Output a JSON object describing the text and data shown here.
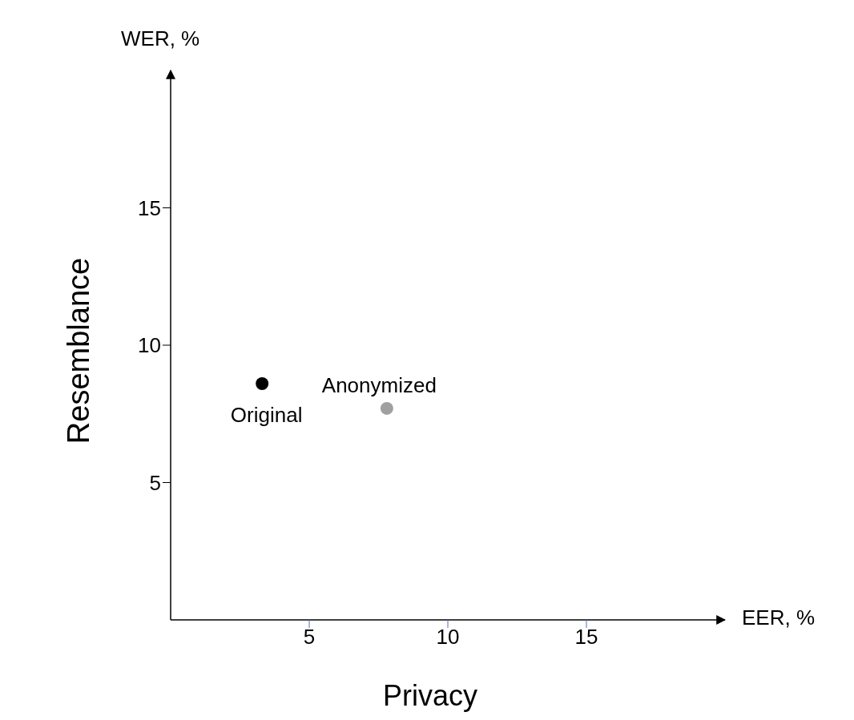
{
  "chart_data": {
    "type": "scatter",
    "xlabel": "Privacy",
    "ylabel": "Resemblance",
    "annotations": [
      "WER, %",
      "EER, %"
    ],
    "xlim": [
      0,
      20
    ],
    "ylim": [
      0,
      20
    ],
    "xticks": [
      5,
      10,
      15
    ],
    "yticks": [
      5,
      10,
      15
    ],
    "grid": false,
    "marker": "circle",
    "series": [
      {
        "name": "Original",
        "color": "#000000",
        "x": [
          3.3
        ],
        "values": [
          8.6
        ]
      },
      {
        "name": "Anonymized",
        "color": "#a0a0a0",
        "x": [
          7.8
        ],
        "values": [
          7.7
        ]
      }
    ]
  }
}
